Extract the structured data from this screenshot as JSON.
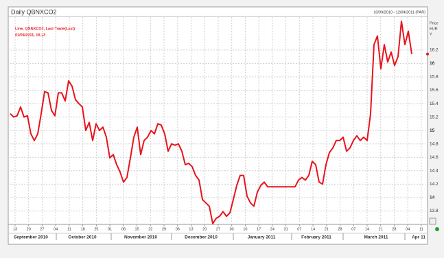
{
  "chart_data": {
    "type": "line",
    "title": "Daily QBNXCO2",
    "date_range": "10/09/2010 - 12/04/2011 (PAR)",
    "legend_lines": [
      "Line, QBNXCO2, Last Trade(Last)",
      "01/04/2011, 16.13"
    ],
    "axis_label": [
      "Price",
      "EUR",
      "Y"
    ],
    "ylim": [
      13.62,
      16.69
    ],
    "yticks": [
      13.8,
      14,
      14.2,
      14.4,
      14.6,
      14.8,
      15,
      15.2,
      15.4,
      15.6,
      15.8,
      16,
      16.2
    ],
    "grid": true,
    "xtick_labels": [
      "13",
      "20",
      "27",
      "04",
      "11",
      "18",
      "25",
      "01",
      "08",
      "15",
      "22",
      "29",
      "06",
      "13",
      "20",
      "27",
      "03",
      "10",
      "17",
      "24",
      "31",
      "07",
      "14",
      "21",
      "28",
      "07",
      "14",
      "21",
      "28",
      "04",
      "11"
    ],
    "month_labels": [
      "September 2010",
      "October 2010",
      "November 2010",
      "December 2010",
      "January 2011",
      "February 2011",
      "March 2011",
      "Apr 11"
    ],
    "series": [
      {
        "name": "QBNXCO2",
        "color": "#e8131b",
        "values": [
          15.25,
          15.2,
          15.22,
          15.35,
          15.2,
          15.22,
          14.95,
          14.85,
          14.95,
          15.25,
          15.58,
          15.56,
          15.3,
          15.22,
          15.56,
          15.56,
          15.44,
          15.74,
          15.66,
          15.46,
          15.4,
          15.35,
          15.0,
          15.12,
          14.85,
          15.1,
          15.0,
          15.05,
          14.9,
          14.59,
          14.64,
          14.49,
          14.38,
          14.23,
          14.3,
          14.59,
          14.9,
          15.05,
          14.64,
          14.85,
          14.9,
          15.0,
          14.95,
          15.1,
          15.08,
          14.95,
          14.69,
          14.8,
          14.78,
          14.8,
          14.69,
          14.49,
          14.51,
          14.46,
          14.33,
          14.26,
          13.97,
          13.92,
          13.87,
          13.61,
          13.69,
          13.72,
          13.79,
          13.72,
          13.77,
          13.97,
          14.18,
          14.33,
          14.33,
          14.02,
          13.92,
          13.87,
          14.08,
          14.18,
          14.23,
          14.16,
          14.16,
          14.16,
          14.16,
          14.16,
          14.16,
          14.16,
          14.16,
          14.16,
          14.26,
          14.3,
          14.26,
          14.33,
          14.54,
          14.49,
          14.23,
          14.2,
          14.49,
          14.67,
          14.74,
          14.85,
          14.85,
          14.9,
          14.69,
          14.74,
          14.85,
          14.92,
          14.85,
          14.9,
          14.85,
          15.25,
          16.28,
          16.41,
          15.92,
          16.28,
          16.02,
          16.17,
          15.97,
          16.1,
          16.63,
          16.28,
          16.48,
          16.14
        ]
      }
    ]
  }
}
